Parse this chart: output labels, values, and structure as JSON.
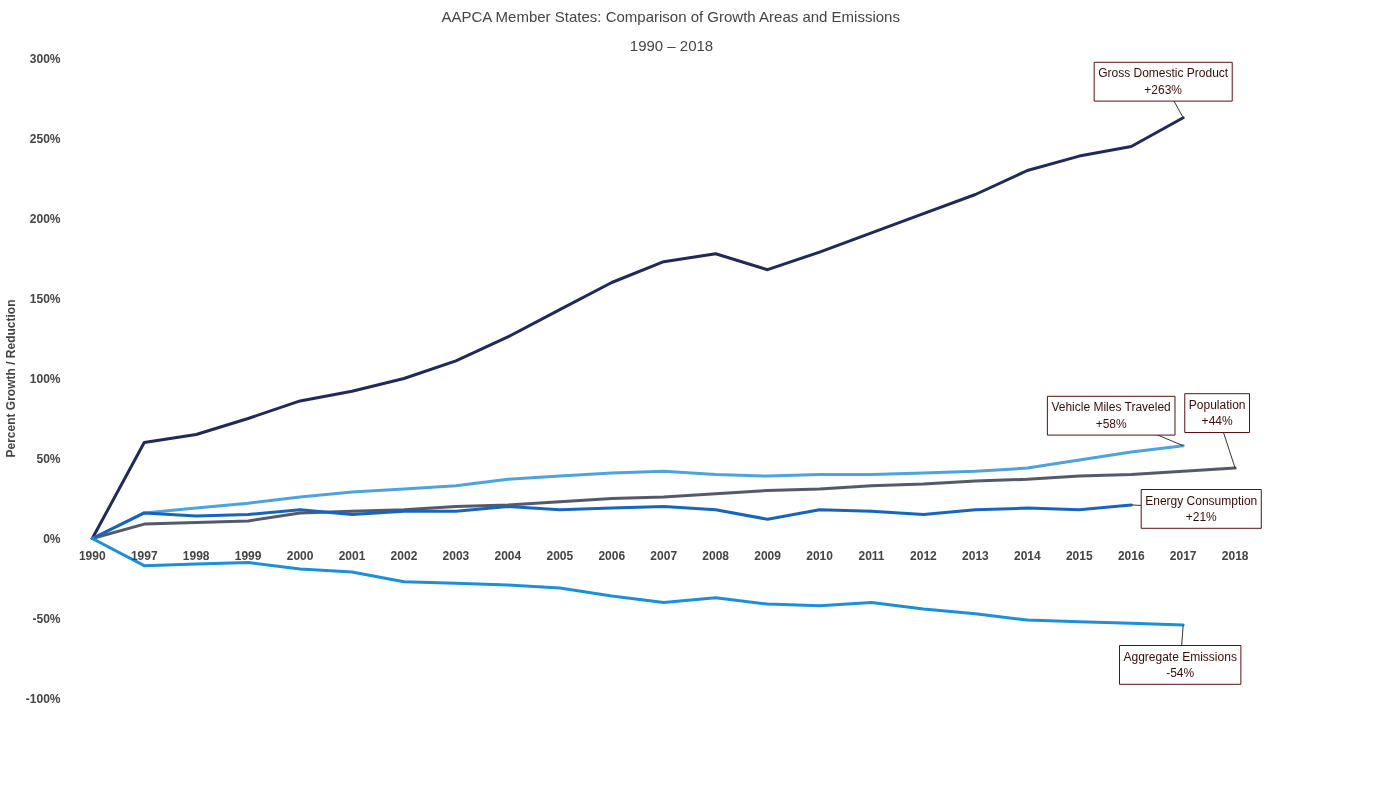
{
  "chart_data": {
    "type": "line",
    "title": "AAPCA Member States: Comparison of Growth Areas and Emissions",
    "subtitle": "1990 – 2018",
    "ylabel": "Percent Growth / Reduction",
    "categories": [
      "1990",
      "1997",
      "1998",
      "1999",
      "2000",
      "2001",
      "2002",
      "2003",
      "2004",
      "2005",
      "2006",
      "2007",
      "2008",
      "2009",
      "2010",
      "2011",
      "2012",
      "2013",
      "2014",
      "2015",
      "2016",
      "2017",
      "2018"
    ],
    "ylim": [
      -100,
      300
    ],
    "yticks": [
      {
        "value": -100,
        "label": "-100%"
      },
      {
        "value": -50,
        "label": "-50%"
      },
      {
        "value": 0,
        "label": "0%"
      },
      {
        "value": 50,
        "label": "50%"
      },
      {
        "value": 100,
        "label": "100%"
      },
      {
        "value": 150,
        "label": "150%"
      },
      {
        "value": 200,
        "label": "200%"
      },
      {
        "value": 250,
        "label": "250%"
      },
      {
        "value": 300,
        "label": "300%"
      }
    ],
    "series": [
      {
        "name": "Gross Domestic Product",
        "color": "#1f2a5a",
        "values": [
          0,
          60,
          65,
          75,
          86,
          92,
          100,
          111,
          126,
          143,
          160,
          173,
          178,
          168,
          179,
          191,
          203,
          215,
          230,
          239,
          245,
          263,
          null
        ],
        "value_labels": [
          null,
          null,
          null,
          null,
          null,
          null,
          null,
          null,
          null,
          null,
          null,
          null,
          null,
          null,
          null,
          null,
          null,
          null,
          null,
          null,
          null,
          "+263%",
          null
        ]
      },
      {
        "name": "Vehicle Miles Traveled",
        "color": "#4da3e0",
        "values": [
          0,
          16,
          19,
          22,
          26,
          29,
          31,
          33,
          37,
          39,
          41,
          42,
          40,
          39,
          40,
          40,
          41,
          42,
          44,
          49,
          54,
          58,
          null
        ],
        "value_labels": [
          null,
          null,
          null,
          null,
          null,
          null,
          null,
          null,
          null,
          null,
          null,
          null,
          null,
          null,
          null,
          null,
          null,
          null,
          null,
          null,
          null,
          "+58%",
          null
        ]
      },
      {
        "name": "Population",
        "color": "#555a6a",
        "values": [
          0,
          9,
          10,
          11,
          16,
          17,
          18,
          20,
          21,
          23,
          25,
          26,
          28,
          30,
          31,
          33,
          34,
          36,
          37,
          39,
          40,
          42,
          44
        ],
        "value_labels": [
          null,
          null,
          null,
          null,
          null,
          null,
          null,
          null,
          null,
          null,
          null,
          null,
          null,
          null,
          null,
          null,
          null,
          null,
          null,
          null,
          null,
          null,
          "+44%"
        ]
      },
      {
        "name": "Energy Consumption",
        "color": "#1565c0",
        "values": [
          0,
          16,
          14,
          15,
          18,
          15,
          17,
          17,
          20,
          18,
          19,
          20,
          18,
          12,
          18,
          17,
          15,
          18,
          19,
          18,
          21,
          null,
          null
        ],
        "value_labels": [
          null,
          null,
          null,
          null,
          null,
          null,
          null,
          null,
          null,
          null,
          null,
          null,
          null,
          null,
          null,
          null,
          null,
          null,
          null,
          null,
          "+21%",
          null,
          null
        ]
      },
      {
        "name": "Aggregate Emissions",
        "color": "#1a90dd",
        "values": [
          0,
          -17,
          -16,
          -15,
          -19,
          -21,
          -27,
          -28,
          -29,
          -31,
          -36,
          -40,
          -37,
          -41,
          -42,
          -40,
          -44,
          -47,
          -51,
          -52,
          -53,
          -54,
          null
        ],
        "value_labels": [
          null,
          null,
          null,
          null,
          null,
          null,
          null,
          null,
          null,
          null,
          null,
          null,
          null,
          null,
          null,
          null,
          null,
          null,
          null,
          null,
          null,
          "-54%",
          null
        ]
      }
    ]
  }
}
